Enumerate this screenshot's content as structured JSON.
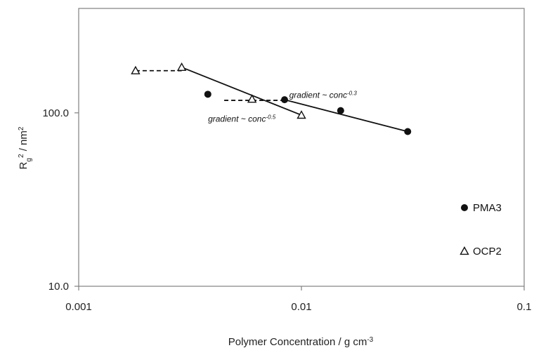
{
  "chart_data": {
    "type": "scatter",
    "x_scale": "log",
    "y_scale": "log",
    "xlim": [
      0.001,
      0.1
    ],
    "ylim": [
      10,
      400
    ],
    "x_ticks": [
      {
        "value": 0.001,
        "label": "0.001"
      },
      {
        "value": 0.01,
        "label": "0.01"
      },
      {
        "value": 0.1,
        "label": "0.1"
      }
    ],
    "y_ticks": [
      {
        "value": 10,
        "label": "10.0"
      },
      {
        "value": 100,
        "label": "100.0"
      }
    ],
    "xlabel": "Polymer Concentration / g cm",
    "xlabel_sup": "-3",
    "ylabel_main": "R",
    "ylabel_sub": "g",
    "ylabel_sup": "2",
    "ylabel_rest": " / nm",
    "ylabel_sup2": "2",
    "grid": false,
    "legend_position": "right",
    "series": [
      {
        "name": "PMA3",
        "marker": "circle",
        "color": "#111111",
        "points": [
          [
            0.0038,
            128
          ],
          [
            0.0084,
            119
          ],
          [
            0.015,
            103
          ],
          [
            0.03,
            78
          ]
        ],
        "fit_line": [
          [
            0.0084,
            119
          ],
          [
            0.03,
            78
          ]
        ],
        "dashed_line": [
          [
            0.0045,
            118
          ],
          [
            0.0084,
            118
          ]
        ]
      },
      {
        "name": "OCP2",
        "marker": "triangle",
        "color": "#111111",
        "points": [
          [
            0.0018,
            175
          ],
          [
            0.0029,
            183
          ],
          [
            0.006,
            120
          ],
          [
            0.01,
            97
          ]
        ],
        "fit_line": [
          [
            0.0029,
            183
          ],
          [
            0.01,
            97
          ]
        ],
        "dashed_line": [
          [
            0.0018,
            175
          ],
          [
            0.0029,
            175
          ]
        ]
      }
    ],
    "annotations": [
      {
        "text": "gradient ~ conc",
        "sup": "-0.3",
        "x": 0.0125,
        "y": 122
      },
      {
        "text": "gradient ~ conc",
        "sup": "-0.5",
        "x": 0.0054,
        "y": 89
      }
    ]
  }
}
